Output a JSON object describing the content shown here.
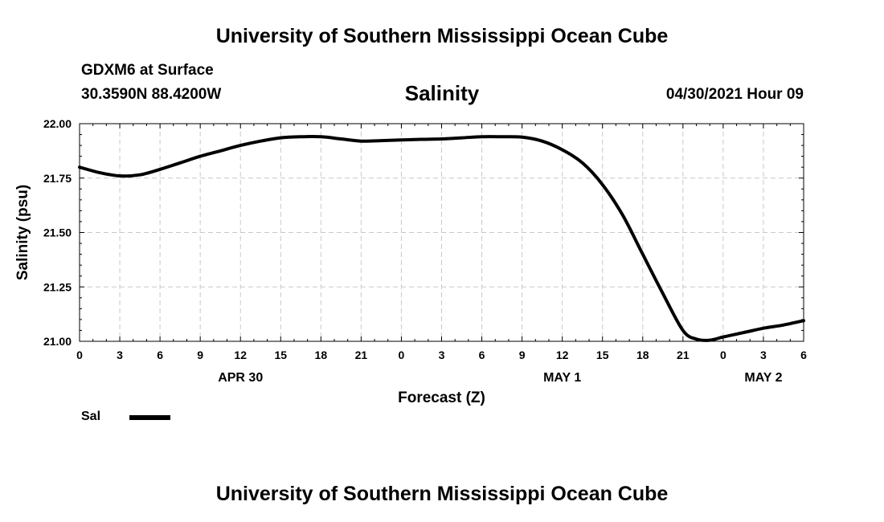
{
  "header": {
    "top_title": "University of Southern Mississippi Ocean Cube",
    "station_name": "GDXM6 at Surface",
    "station_coords": "30.3590N  88.4200W",
    "plot_title": "Salinity",
    "forecast_time": "04/30/2021 Hour 09",
    "bottom_title": "University of Southern Mississippi Ocean Cube"
  },
  "legend": {
    "label": "Sal"
  },
  "colors": {
    "line": "#000000",
    "grid": "#c8c8c8",
    "axis": "#000000"
  },
  "chart_data": {
    "type": "line",
    "title": "Salinity",
    "xlabel": "Forecast (Z)",
    "ylabel": "Salinity (psu)",
    "xlim": [
      0,
      54
    ],
    "ylim": [
      21.0,
      22.0
    ],
    "grid": true,
    "legend_position": "bottom-left",
    "y_ticks": [
      21.0,
      21.25,
      21.5,
      21.75,
      22.0
    ],
    "y_tick_labels": [
      "21.00",
      "21.25",
      "21.50",
      "21.75",
      "22.00"
    ],
    "x_ticks": [
      0,
      3,
      6,
      9,
      12,
      15,
      18,
      21,
      24,
      27,
      30,
      33,
      36,
      39,
      42,
      45,
      48,
      51,
      54
    ],
    "x_tick_labels": [
      "0",
      "3",
      "6",
      "9",
      "12",
      "15",
      "18",
      "21",
      "0",
      "3",
      "6",
      "9",
      "12",
      "15",
      "18",
      "21",
      "0",
      "3",
      "6"
    ],
    "date_labels": [
      {
        "x": 12,
        "label": "APR 30"
      },
      {
        "x": 36,
        "label": "MAY 1"
      },
      {
        "x": 51,
        "label": "MAY 2"
      }
    ],
    "series": [
      {
        "name": "Sal",
        "x": [
          0,
          1.5,
          3,
          4.5,
          6,
          7.5,
          9,
          10.5,
          12,
          13.5,
          15,
          16.5,
          18,
          19.5,
          21,
          22.5,
          24,
          25.5,
          27,
          28.5,
          30,
          31.5,
          33,
          34.5,
          36,
          37.5,
          39,
          40.5,
          42,
          43.5,
          45,
          46,
          47,
          48,
          49.5,
          51,
          52.5,
          54
        ],
        "values": [
          21.8,
          21.775,
          21.76,
          21.765,
          21.79,
          21.82,
          21.85,
          21.875,
          21.9,
          21.92,
          21.935,
          21.94,
          21.94,
          21.93,
          21.92,
          21.922,
          21.925,
          21.928,
          21.93,
          21.935,
          21.94,
          21.94,
          21.938,
          21.92,
          21.88,
          21.82,
          21.72,
          21.58,
          21.4,
          21.22,
          21.05,
          21.01,
          21.005,
          21.02,
          21.04,
          21.06,
          21.075,
          21.095
        ]
      }
    ]
  }
}
